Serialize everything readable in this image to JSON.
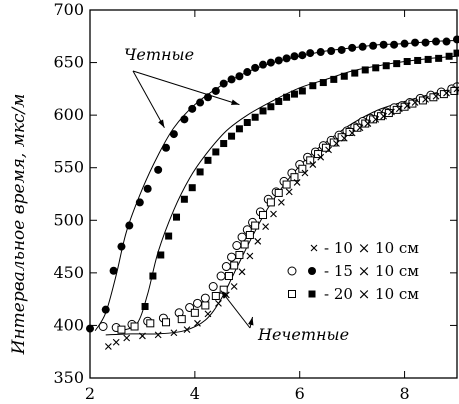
{
  "chart_data": {
    "type": "scatter",
    "ylabel": "Интервальное время, мкс/м",
    "xlabel": "",
    "xlim": [
      2,
      9
    ],
    "ylim": [
      350,
      700
    ],
    "xticks": [
      2,
      4,
      6,
      8
    ],
    "yticks": [
      350,
      400,
      450,
      500,
      550,
      600,
      650,
      700
    ],
    "grid": false,
    "legend_position": "center-right",
    "legend": [
      {
        "markers": [
          "cross"
        ],
        "label": "- 10 × 10 см"
      },
      {
        "markers": [
          "circle-open",
          "circle-filled"
        ],
        "label": "- 15 × 10 см"
      },
      {
        "markers": [
          "square-open",
          "square-filled"
        ],
        "label": "- 20 × 10 см"
      }
    ],
    "annotations": [
      {
        "text": "Четные",
        "targets": [
          [
            3.42,
            588
          ],
          [
            4.85,
            610
          ]
        ]
      },
      {
        "text": "Нечетные",
        "targets": [
          [
            4.5,
            433
          ],
          [
            5.1,
            408
          ]
        ]
      }
    ],
    "series": [
      {
        "marker": "circle-filled",
        "fit": [
          [
            2.1,
            395
          ],
          [
            2.3,
            412
          ],
          [
            2.5,
            448
          ],
          [
            2.7,
            490
          ],
          [
            3.0,
            530
          ],
          [
            3.3,
            562
          ],
          [
            3.6,
            588
          ],
          [
            4.0,
            610
          ],
          [
            4.5,
            628
          ],
          [
            5.0,
            641
          ],
          [
            5.5,
            650
          ],
          [
            6.0,
            656
          ],
          [
            6.5,
            661
          ],
          [
            7.0,
            664
          ],
          [
            7.5,
            667
          ],
          [
            8.0,
            668
          ],
          [
            8.5,
            670
          ],
          [
            9.0,
            671
          ]
        ],
        "points": [
          [
            2.0,
            397
          ],
          [
            2.3,
            415
          ],
          [
            2.45,
            452
          ],
          [
            2.6,
            475
          ],
          [
            2.75,
            495
          ],
          [
            2.95,
            517
          ],
          [
            3.1,
            530
          ],
          [
            3.3,
            548
          ],
          [
            3.45,
            569
          ],
          [
            3.6,
            582
          ],
          [
            3.8,
            596
          ],
          [
            3.95,
            606
          ],
          [
            4.1,
            612
          ],
          [
            4.25,
            617
          ],
          [
            4.4,
            623
          ],
          [
            4.55,
            630
          ],
          [
            4.7,
            634
          ],
          [
            4.85,
            637
          ],
          [
            5.0,
            641
          ],
          [
            5.15,
            645
          ],
          [
            5.3,
            648
          ],
          [
            5.45,
            650
          ],
          [
            5.6,
            652
          ],
          [
            5.75,
            654
          ],
          [
            5.9,
            656
          ],
          [
            6.05,
            657
          ],
          [
            6.2,
            659
          ],
          [
            6.4,
            660
          ],
          [
            6.6,
            661
          ],
          [
            6.8,
            662
          ],
          [
            7.0,
            664
          ],
          [
            7.2,
            665
          ],
          [
            7.4,
            666
          ],
          [
            7.6,
            667
          ],
          [
            7.8,
            667
          ],
          [
            8.0,
            668
          ],
          [
            8.2,
            669
          ],
          [
            8.4,
            669
          ],
          [
            8.6,
            670
          ],
          [
            8.8,
            670
          ],
          [
            9.0,
            672
          ]
        ]
      },
      {
        "marker": "square-filled",
        "fit": [
          [
            2.6,
            395
          ],
          [
            2.9,
            402
          ],
          [
            3.1,
            430
          ],
          [
            3.3,
            470
          ],
          [
            3.6,
            510
          ],
          [
            3.9,
            540
          ],
          [
            4.2,
            562
          ],
          [
            4.6,
            585
          ],
          [
            5.0,
            600
          ],
          [
            5.5,
            614
          ],
          [
            6.0,
            626
          ],
          [
            6.5,
            634
          ],
          [
            7.0,
            642
          ],
          [
            7.5,
            647
          ],
          [
            8.0,
            651
          ],
          [
            8.5,
            654
          ],
          [
            9.0,
            656
          ]
        ],
        "points": [
          [
            3.05,
            418
          ],
          [
            3.2,
            447
          ],
          [
            3.35,
            467
          ],
          [
            3.5,
            485
          ],
          [
            3.65,
            503
          ],
          [
            3.8,
            520
          ],
          [
            3.95,
            531
          ],
          [
            4.1,
            546
          ],
          [
            4.25,
            557
          ],
          [
            4.4,
            565
          ],
          [
            4.55,
            573
          ],
          [
            4.7,
            580
          ],
          [
            4.85,
            587
          ],
          [
            5.0,
            593
          ],
          [
            5.15,
            598
          ],
          [
            5.3,
            604
          ],
          [
            5.45,
            608
          ],
          [
            5.6,
            613
          ],
          [
            5.75,
            617
          ],
          [
            5.9,
            620
          ],
          [
            6.05,
            623
          ],
          [
            6.25,
            628
          ],
          [
            6.45,
            631
          ],
          [
            6.65,
            634
          ],
          [
            6.85,
            637
          ],
          [
            7.05,
            640
          ],
          [
            7.25,
            643
          ],
          [
            7.45,
            645
          ],
          [
            7.65,
            647
          ],
          [
            7.85,
            649
          ],
          [
            8.05,
            651
          ],
          [
            8.25,
            652
          ],
          [
            8.45,
            653
          ],
          [
            8.65,
            654
          ],
          [
            8.85,
            656
          ],
          [
            9.0,
            659
          ]
        ]
      },
      {
        "marker": "circle-open",
        "points": [
          [
            2.25,
            399
          ],
          [
            2.5,
            398
          ],
          [
            2.8,
            401
          ],
          [
            3.1,
            404
          ],
          [
            3.4,
            407
          ],
          [
            3.7,
            412
          ],
          [
            3.9,
            417
          ],
          [
            4.05,
            421
          ],
          [
            4.2,
            426
          ],
          [
            4.35,
            437
          ],
          [
            4.5,
            447
          ],
          [
            4.6,
            456
          ],
          [
            4.7,
            465
          ],
          [
            4.8,
            476
          ],
          [
            4.9,
            484
          ],
          [
            5.0,
            491
          ],
          [
            5.1,
            498
          ],
          [
            5.25,
            508
          ],
          [
            5.4,
            520
          ],
          [
            5.55,
            527
          ],
          [
            5.7,
            537
          ],
          [
            5.85,
            545
          ],
          [
            6.0,
            553
          ],
          [
            6.15,
            560
          ],
          [
            6.3,
            565
          ],
          [
            6.45,
            571
          ],
          [
            6.6,
            576
          ],
          [
            6.75,
            581
          ],
          [
            6.9,
            585
          ],
          [
            7.05,
            589
          ],
          [
            7.2,
            594
          ],
          [
            7.35,
            597
          ],
          [
            7.5,
            601
          ],
          [
            7.65,
            603
          ],
          [
            7.8,
            607
          ],
          [
            7.95,
            609
          ],
          [
            8.1,
            612
          ],
          [
            8.3,
            616
          ],
          [
            8.5,
            619
          ],
          [
            8.7,
            622
          ],
          [
            8.9,
            625
          ],
          [
            9.0,
            627
          ]
        ]
      },
      {
        "marker": "square-open",
        "points": [
          [
            2.6,
            396
          ],
          [
            2.85,
            399
          ],
          [
            3.15,
            402
          ],
          [
            3.45,
            403
          ],
          [
            3.75,
            406
          ],
          [
            4.0,
            412
          ],
          [
            4.2,
            419
          ],
          [
            4.4,
            428
          ],
          [
            4.55,
            434
          ],
          [
            4.65,
            447
          ],
          [
            4.75,
            457
          ],
          [
            4.85,
            467
          ],
          [
            4.95,
            477
          ],
          [
            5.05,
            486
          ],
          [
            5.15,
            495
          ],
          [
            5.3,
            505
          ],
          [
            5.45,
            517
          ],
          [
            5.6,
            526
          ],
          [
            5.75,
            534
          ],
          [
            5.9,
            541
          ],
          [
            6.05,
            549
          ],
          [
            6.2,
            557
          ],
          [
            6.35,
            563
          ],
          [
            6.5,
            569
          ],
          [
            6.65,
            574
          ],
          [
            6.8,
            579
          ],
          [
            6.95,
            584
          ],
          [
            7.1,
            588
          ],
          [
            7.25,
            592
          ],
          [
            7.4,
            596
          ],
          [
            7.55,
            599
          ],
          [
            7.7,
            602
          ],
          [
            7.85,
            605
          ],
          [
            8.0,
            608
          ],
          [
            8.15,
            611
          ],
          [
            8.35,
            614
          ],
          [
            8.55,
            617
          ],
          [
            8.75,
            620
          ],
          [
            8.95,
            623
          ]
        ]
      },
      {
        "marker": "cross",
        "fit": [
          [
            2.3,
            391
          ],
          [
            2.8,
            392
          ],
          [
            3.3,
            392
          ],
          [
            3.8,
            395
          ],
          [
            4.2,
            405
          ],
          [
            4.5,
            425
          ],
          [
            4.8,
            455
          ],
          [
            5.1,
            485
          ],
          [
            5.4,
            512
          ],
          [
            5.8,
            540
          ],
          [
            6.2,
            562
          ],
          [
            6.6,
            578
          ],
          [
            7.0,
            592
          ],
          [
            7.5,
            605
          ],
          [
            8.0,
            613
          ],
          [
            8.5,
            620
          ],
          [
            9.0,
            626
          ]
        ],
        "points": [
          [
            2.35,
            380
          ],
          [
            2.5,
            384
          ],
          [
            2.7,
            388
          ],
          [
            3.0,
            390
          ],
          [
            3.3,
            391
          ],
          [
            3.6,
            393
          ],
          [
            3.85,
            396
          ],
          [
            4.05,
            402
          ],
          [
            4.25,
            411
          ],
          [
            4.45,
            421
          ],
          [
            4.6,
            429
          ],
          [
            4.75,
            437
          ],
          [
            4.9,
            451
          ],
          [
            5.05,
            466
          ],
          [
            5.2,
            480
          ],
          [
            5.35,
            494
          ],
          [
            5.5,
            506
          ],
          [
            5.65,
            517
          ],
          [
            5.8,
            527
          ],
          [
            5.95,
            536
          ],
          [
            6.1,
            545
          ],
          [
            6.25,
            553
          ],
          [
            6.4,
            560
          ],
          [
            6.55,
            567
          ],
          [
            6.7,
            573
          ],
          [
            6.85,
            578
          ],
          [
            7.0,
            583
          ],
          [
            7.15,
            588
          ],
          [
            7.3,
            592
          ],
          [
            7.45,
            596
          ],
          [
            7.6,
            599
          ],
          [
            7.75,
            603
          ],
          [
            7.9,
            606
          ],
          [
            8.05,
            609
          ],
          [
            8.2,
            612
          ],
          [
            8.4,
            615
          ],
          [
            8.6,
            618
          ],
          [
            8.8,
            621
          ],
          [
            9.0,
            625
          ]
        ]
      }
    ]
  }
}
